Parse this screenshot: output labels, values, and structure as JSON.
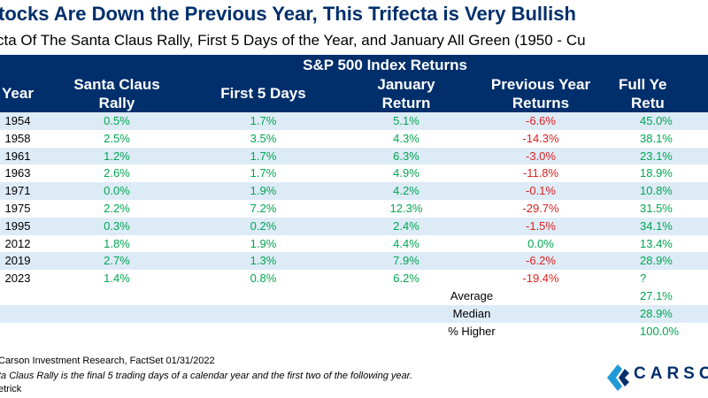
{
  "title": "tocks Are Down the Previous Year, This Trifecta is Very Bullish",
  "subtitle": "cta Of The Santa Claus Rally, First 5 Days of the Year, and January All Green (1950 - Cu",
  "chart_data": {
    "type": "table",
    "group_header": "S&P 500 Index Returns",
    "columns": [
      "Year",
      "Santa Claus Rally",
      "First 5 Days",
      "January Return",
      "Previous Year Returns",
      "Full Year Returns"
    ],
    "rows": [
      {
        "year": "1954",
        "santa": "0.5%",
        "first5": "1.7%",
        "january": "5.1%",
        "prev": "-6.6%",
        "full": "45.0%"
      },
      {
        "year": "1958",
        "santa": "2.5%",
        "first5": "3.5%",
        "january": "4.3%",
        "prev": "-14.3%",
        "full": "38.1%"
      },
      {
        "year": "1961",
        "santa": "1.2%",
        "first5": "1.7%",
        "january": "6.3%",
        "prev": "-3.0%",
        "full": "23.1%"
      },
      {
        "year": "1963",
        "santa": "2.6%",
        "first5": "1.7%",
        "january": "4.9%",
        "prev": "-11.8%",
        "full": "18.9%"
      },
      {
        "year": "1971",
        "santa": "0.0%",
        "first5": "1.9%",
        "january": "4.2%",
        "prev": "-0.1%",
        "full": "10.8%"
      },
      {
        "year": "1975",
        "santa": "2.2%",
        "first5": "7.2%",
        "january": "12.3%",
        "prev": "-29.7%",
        "full": "31.5%"
      },
      {
        "year": "1995",
        "santa": "0.3%",
        "first5": "0.2%",
        "january": "2.4%",
        "prev": "-1.5%",
        "full": "34.1%"
      },
      {
        "year": "2012",
        "santa": "1.8%",
        "first5": "1.9%",
        "january": "4.4%",
        "prev": "0.0%",
        "full": "13.4%"
      },
      {
        "year": "2019",
        "santa": "2.7%",
        "first5": "1.3%",
        "january": "7.9%",
        "prev": "-6.2%",
        "full": "28.9%"
      },
      {
        "year": "2023",
        "santa": "1.4%",
        "first5": "0.8%",
        "january": "6.2%",
        "prev": "-19.4%",
        "full": "?"
      }
    ],
    "summary": [
      {
        "label": "Average",
        "value": "27.1%"
      },
      {
        "label": "Median",
        "value": "28.9%"
      },
      {
        "label": "% Higher",
        "value": "100.0%"
      }
    ]
  },
  "header_lines": {
    "year": "Year",
    "santa_1": "Santa Claus",
    "santa_2": "Rally",
    "first5": "First 5 Days",
    "january_1": "January",
    "january_2": "Return",
    "prev_1": "Previous Year",
    "prev_2": "Returns",
    "full_1": "Full Ye",
    "full_2": "Retu"
  },
  "footer": {
    "source": "Carson Investment Research, FactSet 01/31/2022",
    "note": "ta Claus Rally is the final 5 trading days of a calendar year and the first two of the following year.",
    "author": "etrick"
  },
  "logo": {
    "text": "CARSO",
    "colors": {
      "navy": "#002F6C",
      "blue": "#1F9AD6"
    }
  },
  "colors": {
    "header_bg": "#002F6C",
    "band": "#DDEBF7",
    "positive": "#00A651",
    "negative": "#E02020",
    "title": "#002F6C"
  }
}
